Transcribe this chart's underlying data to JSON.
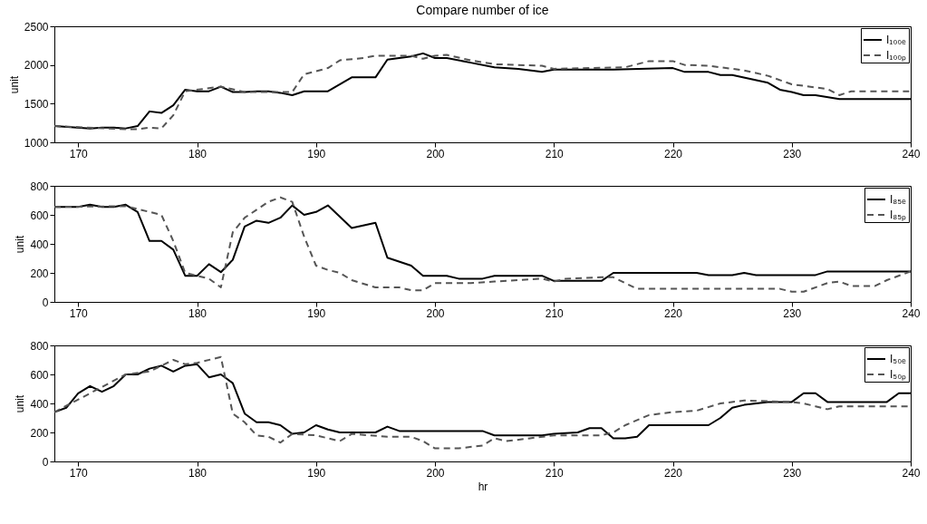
{
  "chart_data": [
    {
      "type": "line",
      "title": "Compare number of ice",
      "ylabel": "unit",
      "xlim": [
        168,
        240
      ],
      "xticks": [
        170,
        180,
        190,
        200,
        210,
        220,
        230,
        240
      ],
      "ylim": [
        1000,
        2500
      ],
      "yticks": [
        1000,
        1500,
        2000,
        2500
      ],
      "legend": "top right",
      "series": [
        {
          "name": "I₁₀₀ₑ",
          "color": "#000000",
          "line_style": "solid",
          "x": [
            168,
            171,
            172,
            173,
            174,
            175,
            176,
            177,
            178,
            179,
            180,
            181,
            182,
            183,
            184,
            185,
            186,
            187,
            188,
            189,
            191,
            193,
            195,
            196,
            198,
            199,
            200,
            201,
            203,
            205,
            207,
            209,
            210,
            215,
            220,
            221,
            223,
            224,
            225,
            228,
            229,
            230,
            231,
            232,
            234,
            240
          ],
          "values": [
            1210,
            1180,
            1190,
            1190,
            1180,
            1210,
            1400,
            1380,
            1480,
            1680,
            1660,
            1660,
            1720,
            1650,
            1650,
            1660,
            1660,
            1640,
            1610,
            1660,
            1660,
            1840,
            1840,
            2070,
            2110,
            2150,
            2090,
            2090,
            2030,
            1970,
            1950,
            1910,
            1940,
            1940,
            1960,
            1910,
            1910,
            1870,
            1870,
            1770,
            1680,
            1650,
            1610,
            1610,
            1560,
            1560
          ]
        },
        {
          "name": "I₁₀₀ₚ",
          "color": "#555555",
          "line_style": "dashed",
          "x": [
            168,
            174,
            175,
            176,
            177,
            178,
            179,
            182,
            184,
            187,
            188,
            189,
            190,
            191,
            192,
            194,
            195,
            198,
            199,
            200,
            201,
            203,
            205,
            209,
            210,
            216,
            218,
            220,
            221,
            223,
            226,
            228,
            230,
            233,
            234,
            235,
            240
          ],
          "values": [
            1210,
            1170,
            1170,
            1190,
            1180,
            1350,
            1660,
            1720,
            1650,
            1650,
            1650,
            1880,
            1920,
            1960,
            2060,
            2090,
            2120,
            2120,
            2080,
            2120,
            2130,
            2060,
            2010,
            1990,
            1950,
            1970,
            2050,
            2050,
            2000,
            1990,
            1930,
            1860,
            1750,
            1690,
            1610,
            1660,
            1660
          ]
        }
      ]
    },
    {
      "type": "line",
      "ylabel": "unit",
      "xlim": [
        168,
        240
      ],
      "xticks": [
        170,
        180,
        190,
        200,
        210,
        220,
        230,
        240
      ],
      "ylim": [
        0,
        800
      ],
      "yticks": [
        0,
        200,
        400,
        600,
        800
      ],
      "legend": "top right",
      "series": [
        {
          "name": "I₈₅ₑ",
          "color": "#000000",
          "line_style": "solid",
          "x": [
            168,
            170,
            171,
            172,
            173,
            174,
            175,
            176,
            177,
            178,
            179,
            180,
            181,
            182,
            183,
            184,
            185,
            186,
            187,
            188,
            189,
            190,
            191,
            193,
            195,
            196,
            198,
            199,
            201,
            202,
            204,
            205,
            209,
            210,
            214,
            215,
            222,
            223,
            225,
            226,
            227,
            232,
            233,
            240
          ],
          "values": [
            655,
            655,
            670,
            655,
            655,
            670,
            620,
            420,
            420,
            360,
            180,
            180,
            260,
            205,
            290,
            520,
            560,
            545,
            580,
            665,
            600,
            620,
            665,
            510,
            545,
            305,
            250,
            180,
            180,
            160,
            160,
            180,
            180,
            145,
            145,
            200,
            200,
            185,
            185,
            200,
            185,
            185,
            210,
            210
          ]
        },
        {
          "name": "I₈₅ₚ",
          "color": "#555555",
          "line_style": "dashed",
          "x": [
            168,
            174,
            176,
            177,
            178,
            179,
            180,
            181,
            182,
            183,
            184,
            186,
            187,
            188,
            189,
            190,
            191,
            192,
            193,
            195,
            197,
            198,
            199,
            200,
            203,
            205,
            207,
            209,
            210,
            211,
            214,
            215,
            216,
            217,
            229,
            230,
            231,
            233,
            234,
            235,
            237,
            238,
            240
          ],
          "values": [
            655,
            660,
            620,
            600,
            420,
            200,
            180,
            160,
            100,
            480,
            580,
            690,
            720,
            690,
            450,
            250,
            220,
            200,
            150,
            100,
            100,
            80,
            80,
            130,
            130,
            140,
            150,
            160,
            140,
            160,
            170,
            170,
            130,
            90,
            90,
            70,
            70,
            130,
            140,
            110,
            110,
            150,
            210
          ]
        }
      ]
    },
    {
      "type": "line",
      "ylabel": "unit",
      "xlabel": "hr",
      "xlim": [
        168,
        240
      ],
      "xticks": [
        170,
        180,
        190,
        200,
        210,
        220,
        230,
        240
      ],
      "ylim": [
        0,
        800
      ],
      "yticks": [
        0,
        200,
        400,
        600,
        800
      ],
      "legend": "top right",
      "series": [
        {
          "name": "I₅₀ₑ",
          "color": "#000000",
          "line_style": "solid",
          "x": [
            168,
            169,
            170,
            171,
            172,
            173,
            174,
            175,
            176,
            177,
            178,
            179,
            180,
            181,
            182,
            183,
            184,
            185,
            186,
            187,
            188,
            189,
            190,
            191,
            192,
            195,
            196,
            197,
            204,
            205,
            209,
            210,
            212,
            213,
            214,
            215,
            216,
            217,
            218,
            223,
            224,
            225,
            226,
            228,
            230,
            231,
            232,
            233,
            238,
            239,
            240
          ],
          "values": [
            340,
            370,
            470,
            520,
            480,
            520,
            600,
            600,
            640,
            660,
            620,
            660,
            670,
            580,
            600,
            540,
            330,
            270,
            270,
            250,
            190,
            200,
            250,
            220,
            200,
            200,
            240,
            210,
            210,
            180,
            180,
            190,
            200,
            230,
            230,
            160,
            160,
            170,
            250,
            250,
            300,
            370,
            390,
            410,
            410,
            470,
            470,
            410,
            410,
            470,
            470
          ]
        },
        {
          "name": "I₅₀ₚ",
          "color": "#555555",
          "line_style": "dashed",
          "x": [
            168,
            174,
            176,
            178,
            179,
            180,
            182,
            183,
            184,
            185,
            186,
            187,
            188,
            190,
            191,
            192,
            193,
            196,
            198,
            199,
            200,
            202,
            204,
            205,
            206,
            208,
            210,
            214,
            215,
            216,
            218,
            220,
            222,
            224,
            226,
            230,
            231,
            232,
            233,
            234,
            240
          ],
          "values": [
            340,
            600,
            620,
            700,
            670,
            680,
            720,
            330,
            270,
            180,
            170,
            130,
            190,
            180,
            160,
            140,
            190,
            170,
            170,
            140,
            90,
            90,
            110,
            160,
            140,
            160,
            180,
            180,
            200,
            250,
            320,
            340,
            350,
            400,
            420,
            410,
            400,
            380,
            360,
            380,
            380
          ]
        }
      ]
    }
  ]
}
